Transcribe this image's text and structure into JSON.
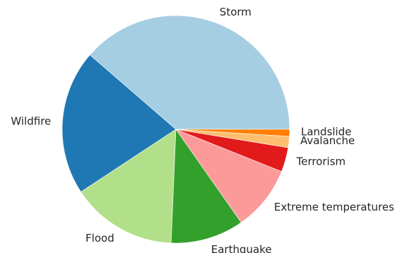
{
  "chart_data": {
    "type": "pie",
    "title": "",
    "slices": [
      {
        "label": "Storm",
        "value": 39.0,
        "color": "#a6cee3"
      },
      {
        "label": "Wildfire",
        "value": 20.8,
        "color": "#1f78b4"
      },
      {
        "label": "Flood",
        "value": 15.2,
        "color": "#b2df8a"
      },
      {
        "label": "Earthquake",
        "value": 10.5,
        "color": "#33a02c"
      },
      {
        "label": "Extreme temperatures",
        "value": 9.3,
        "color": "#fb9a99"
      },
      {
        "label": "Terrorism",
        "value": 3.5,
        "color": "#e31a1c"
      },
      {
        "label": "Avalanche",
        "value": 1.6,
        "color": "#fdbf6f"
      },
      {
        "label": "Landslide",
        "value": 1.0,
        "color": "#ff7f00"
      }
    ],
    "start_angle_deg": 0,
    "direction": "counterclockwise",
    "legend": "none"
  }
}
